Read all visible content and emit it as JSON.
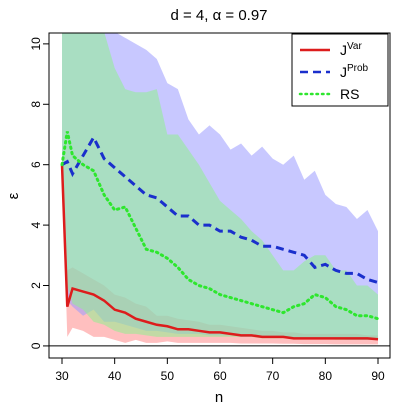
{
  "chart_data": {
    "type": "line",
    "title": "d = 4, α = 0.97",
    "xlabel": "n",
    "ylabel": "ε",
    "x": [
      30,
      31,
      32,
      34,
      36,
      38,
      40,
      42,
      44,
      46,
      48,
      50,
      52,
      54,
      56,
      58,
      60,
      62,
      64,
      66,
      68,
      70,
      72,
      74,
      76,
      78,
      80,
      82,
      84,
      86,
      88,
      90
    ],
    "xlim": [
      27.53,
      92.28
    ],
    "ylim": [
      -0.4,
      10.36
    ],
    "xticks": [
      30,
      40,
      50,
      60,
      70,
      80,
      90
    ],
    "yticks": [
      0,
      2,
      4,
      6,
      8,
      10
    ],
    "hline": 0,
    "legend": "top-right",
    "series": [
      {
        "name": "J",
        "name_superscript": "Var",
        "color": "#dd1c1c",
        "band_color": "#ff8a8a",
        "dash": "solid",
        "values": [
          6.0,
          1.3,
          1.9,
          1.8,
          1.7,
          1.5,
          1.2,
          1.1,
          0.9,
          0.8,
          0.7,
          0.65,
          0.55,
          0.55,
          0.5,
          0.45,
          0.45,
          0.4,
          0.35,
          0.35,
          0.3,
          0.3,
          0.3,
          0.25,
          0.25,
          0.25,
          0.25,
          0.25,
          0.25,
          0.25,
          0.25,
          0.22
        ],
        "upper": [
          6.0,
          2.5,
          2.6,
          2.4,
          2.2,
          2.0,
          1.7,
          1.6,
          1.4,
          1.3,
          1.0,
          1.0,
          0.9,
          0.85,
          0.8,
          0.7,
          0.7,
          0.65,
          0.6,
          0.55,
          0.5,
          0.5,
          0.45,
          0.45,
          0.4,
          0.4,
          0.4,
          0.4,
          0.4,
          0.4,
          0.35,
          0.35
        ],
        "lower": [
          6.0,
          0.3,
          0.6,
          0.5,
          0.3,
          0.3,
          0.2,
          0.1,
          0.2,
          0.1,
          0.1,
          0.15,
          0.1,
          0.1,
          0.1,
          0.1,
          0.1,
          0.1,
          0.08,
          0.08,
          0.08,
          0.08,
          0.07,
          0.07,
          0.06,
          0.06,
          0.06,
          0.05,
          0.05,
          0.05,
          0.05,
          0.05
        ]
      },
      {
        "name": "J",
        "name_superscript": "Prob",
        "color": "#1a2fcc",
        "band_color": "#9a9aff",
        "dash": "dashed",
        "values": [
          6.0,
          6.1,
          5.7,
          6.3,
          6.9,
          6.2,
          5.9,
          5.6,
          5.3,
          5.0,
          4.9,
          4.6,
          4.3,
          4.3,
          4.0,
          4.0,
          3.8,
          3.8,
          3.6,
          3.5,
          3.3,
          3.3,
          3.2,
          3.1,
          3.0,
          2.6,
          2.7,
          2.5,
          2.4,
          2.4,
          2.2,
          2.1
        ],
        "upper": [
          10.4,
          10.4,
          10.4,
          10.4,
          10.4,
          10.4,
          10.4,
          10.2,
          10.0,
          9.8,
          9.5,
          8.7,
          8.5,
          7.5,
          7.0,
          7.3,
          7.0,
          6.5,
          6.7,
          6.3,
          6.6,
          6.2,
          6.0,
          6.3,
          5.5,
          5.8,
          5.0,
          4.7,
          4.6,
          4.2,
          4.5,
          3.8
        ],
        "lower": [
          6.0,
          1.5,
          1.3,
          1.0,
          1.2,
          0.8,
          0.8,
          0.7,
          0.6,
          0.5,
          0.5,
          0.45,
          0.4,
          0.4,
          0.4,
          0.35,
          0.35,
          0.35,
          0.3,
          0.3,
          0.3,
          0.3,
          0.3,
          0.25,
          0.25,
          0.25,
          0.25,
          0.25,
          0.2,
          0.2,
          0.2,
          0.2
        ]
      },
      {
        "name": "RS",
        "color": "#2ee62e",
        "band_color": "#8ff08f",
        "dash": "dotted",
        "values": [
          6.0,
          7.1,
          6.3,
          6.0,
          5.8,
          5.0,
          4.5,
          4.6,
          3.9,
          3.2,
          3.1,
          2.9,
          2.6,
          2.2,
          2.0,
          1.9,
          1.7,
          1.6,
          1.5,
          1.4,
          1.3,
          1.2,
          1.1,
          1.3,
          1.4,
          1.7,
          1.6,
          1.3,
          1.2,
          1.0,
          1.0,
          0.9
        ],
        "upper": [
          10.4,
          10.4,
          10.4,
          10.4,
          10.4,
          10.4,
          9.2,
          8.5,
          8.4,
          8.4,
          8.5,
          7.0,
          7.0,
          6.5,
          6.0,
          5.4,
          4.8,
          4.5,
          4.2,
          3.8,
          3.5,
          3.0,
          2.5,
          2.5,
          2.8,
          3.0,
          3.0,
          2.5,
          2.5,
          2.0,
          2.0,
          1.7
        ],
        "lower": [
          6.0,
          2.0,
          1.4,
          1.2,
          0.8,
          0.7,
          0.5,
          0.4,
          0.4,
          0.35,
          0.3,
          0.3,
          0.3,
          0.3,
          0.3,
          0.3,
          0.3,
          0.3,
          0.3,
          0.3,
          0.25,
          0.25,
          0.25,
          0.25,
          0.25,
          0.25,
          0.25,
          0.2,
          0.2,
          0.2,
          0.2,
          0.2
        ]
      }
    ]
  }
}
